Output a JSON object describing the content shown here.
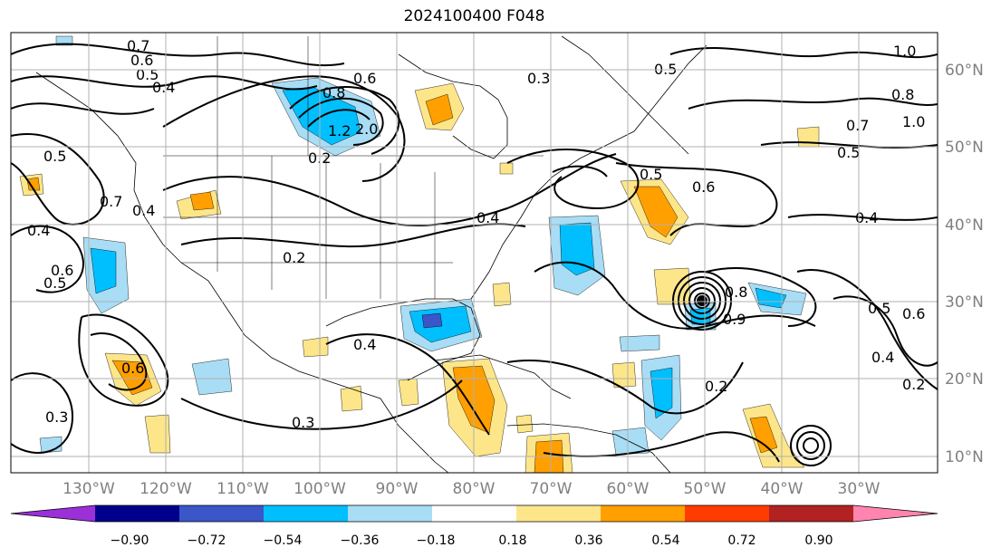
{
  "title": "2024100400 F048",
  "lon_labels": [
    "130°W",
    "120°W",
    "110°W",
    "100°W",
    "90°W",
    "80°W",
    "70°W",
    "60°W",
    "50°W",
    "40°W",
    "30°W"
  ],
  "lat_labels": [
    "60°N",
    "50°N",
    "40°N",
    "30°N",
    "20°N",
    "10°N"
  ],
  "colorbar": {
    "colors": [
      "#9b30d8",
      "#00008b",
      "#3a56c8",
      "#00bfff",
      "#a8ddf5",
      "#ffffff",
      "#fde68a",
      "#ff9f00",
      "#ff3c00",
      "#b22222",
      "#ff85b0"
    ],
    "tick_labels": [
      "−0.90",
      "−0.72",
      "−0.54",
      "−0.36",
      "−0.18",
      "0.18",
      "0.36",
      "0.54",
      "0.72",
      "0.90"
    ]
  },
  "contour_labels": [
    {
      "text": "0.7"
    },
    {
      "text": "0.6"
    },
    {
      "text": "0.5"
    },
    {
      "text": "0.4"
    },
    {
      "text": "0.6"
    },
    {
      "text": "0.8"
    },
    {
      "text": "1.2"
    },
    {
      "text": "2.0"
    },
    {
      "text": "0.2"
    },
    {
      "text": "0.3"
    },
    {
      "text": "0.5"
    },
    {
      "text": "1.0"
    },
    {
      "text": "0.8"
    },
    {
      "text": "0.7"
    },
    {
      "text": "1.0"
    },
    {
      "text": "0.5"
    },
    {
      "text": "0.5"
    },
    {
      "text": "0.6"
    },
    {
      "text": "0.4"
    },
    {
      "text": "0.4"
    },
    {
      "text": "0.5"
    },
    {
      "text": "0.7"
    },
    {
      "text": "0.4"
    },
    {
      "text": "0.4"
    },
    {
      "text": "0.6"
    },
    {
      "text": "0.5"
    },
    {
      "text": "0.6"
    },
    {
      "text": "0.3"
    },
    {
      "text": "0.4"
    },
    {
      "text": "0.3"
    },
    {
      "text": "0.2"
    },
    {
      "text": "0.2"
    },
    {
      "text": "0.5"
    },
    {
      "text": "0.6"
    },
    {
      "text": "0.4"
    },
    {
      "text": "0.2"
    },
    {
      "text": "0.8"
    },
    {
      "text": "0.9"
    }
  ]
}
